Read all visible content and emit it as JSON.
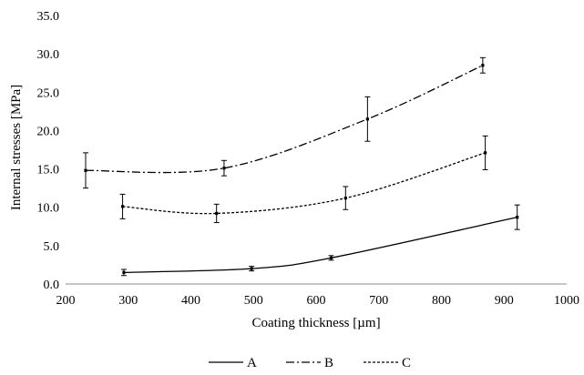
{
  "chart_data": {
    "type": "line",
    "title": "",
    "xlabel": "Coating thickness [µm]",
    "ylabel": "Internal stresses [MPa]",
    "xlim": [
      200,
      1000
    ],
    "ylim": [
      0,
      35
    ],
    "xticks": [
      200,
      300,
      400,
      500,
      600,
      700,
      800,
      900,
      1000
    ],
    "yticks": [
      0,
      5,
      10,
      15,
      20,
      25,
      30,
      35
    ],
    "ytick_labels": [
      "0.0",
      "5.0",
      "10.0",
      "15.0",
      "20.0",
      "25.0",
      "30.0",
      "35.0"
    ],
    "grid": false,
    "legend_position": "bottom",
    "series": [
      {
        "name": "A",
        "line_style": "solid",
        "x": [
          293,
          497,
          624,
          921
        ],
        "y": [
          1.5,
          2.0,
          3.4,
          8.7
        ],
        "error": [
          0.4,
          0.3,
          0.3,
          1.6
        ]
      },
      {
        "name": "B",
        "line_style": "dash-dot",
        "x": [
          232,
          453,
          682,
          866
        ],
        "y": [
          14.8,
          15.1,
          21.5,
          28.5
        ],
        "error": [
          2.3,
          1.0,
          2.9,
          1.0
        ]
      },
      {
        "name": "C",
        "line_style": "dotted",
        "x": [
          291,
          441,
          647,
          870
        ],
        "y": [
          10.1,
          9.2,
          11.2,
          17.1
        ],
        "error": [
          1.6,
          1.2,
          1.5,
          2.2
        ]
      }
    ]
  }
}
